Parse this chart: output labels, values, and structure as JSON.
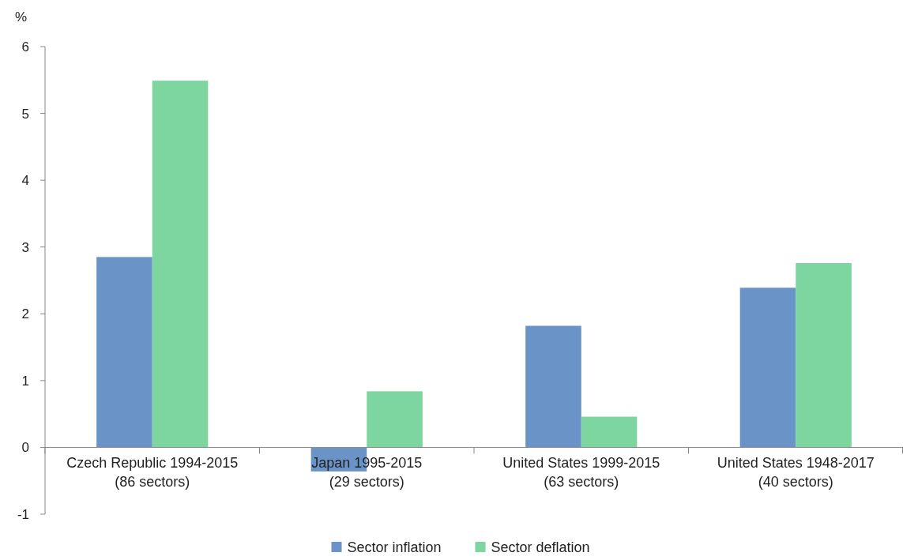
{
  "chart_data": {
    "type": "bar",
    "ylabel": "%",
    "categories": [
      "Czech Republic 1994-2015\n(86 sectors)",
      "Japan 1995-2015\n(29 sectors)",
      "United States 1999-2015\n(63 sectors)",
      "United States 1948-2017\n(40 sectors)"
    ],
    "series": [
      {
        "name": "Sector inflation",
        "color": "#6a93c8",
        "values": [
          2.85,
          -0.36,
          1.82,
          2.39
        ]
      },
      {
        "name": "Sector deflation",
        "color": "#7dd5a0",
        "values": [
          5.49,
          0.84,
          0.46,
          2.76
        ]
      }
    ],
    "ylim": [
      -1,
      6
    ],
    "yticks": [
      -1,
      0,
      1,
      2,
      3,
      4,
      5,
      6
    ],
    "grid": false,
    "legend": "bottom"
  }
}
